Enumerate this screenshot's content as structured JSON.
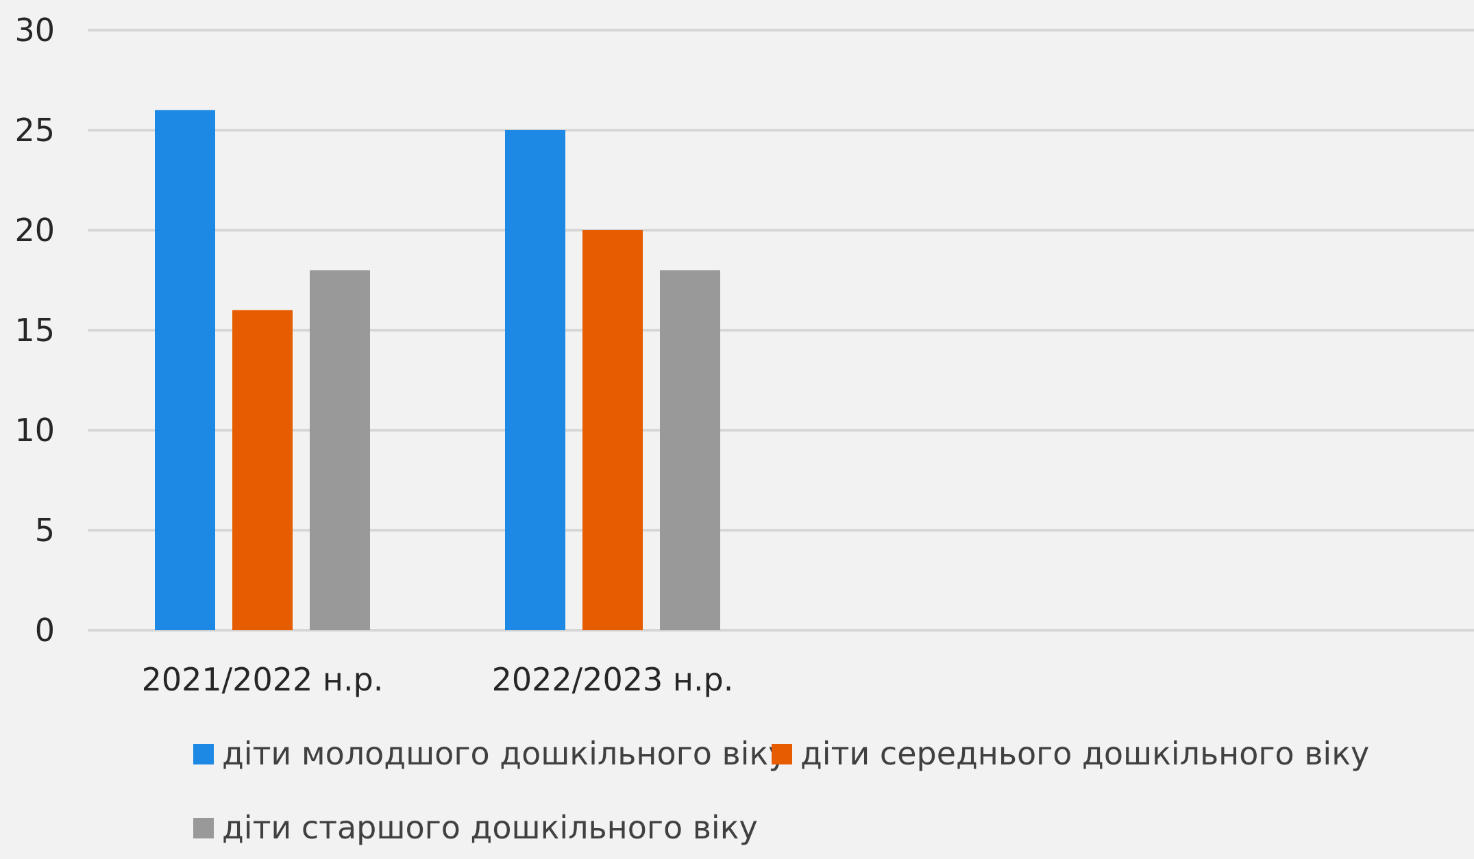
{
  "chart_data": {
    "type": "bar",
    "title": "",
    "xlabel": "",
    "ylabel": "",
    "categories": [
      "2021/2022 н.р.",
      "2022/2023 н.р."
    ],
    "series": [
      {
        "name": "діти молодшого дошкільного віку",
        "values": [
          26,
          25
        ],
        "color": "#1e88e5"
      },
      {
        "name": "діти середнього дошкільного віку",
        "values": [
          16,
          20
        ],
        "color": "#e65c00"
      },
      {
        "name": "діти старшого дошкільного віку",
        "values": [
          18,
          18
        ],
        "color": "#999999"
      }
    ],
    "ylim": [
      0,
      30
    ],
    "yticks": [
      0,
      5,
      10,
      15,
      20,
      25,
      30
    ],
    "grid": true,
    "legend_position": "bottom"
  }
}
